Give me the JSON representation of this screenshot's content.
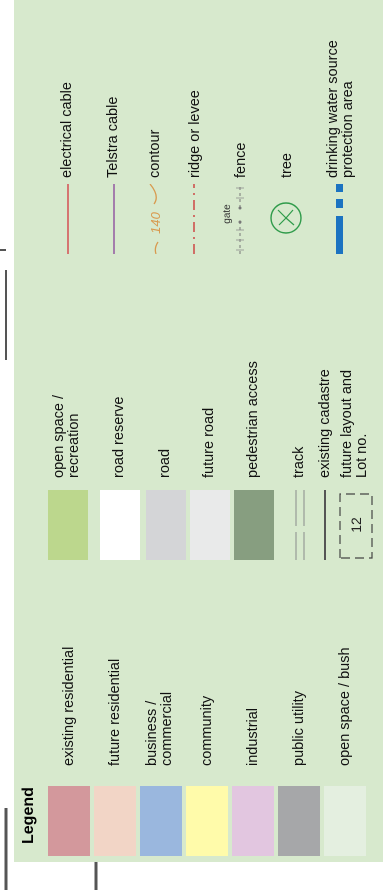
{
  "legend_title": "Legend",
  "land_use": [
    {
      "label": "existing residential",
      "color": "#d3989c"
    },
    {
      "label": "future residential",
      "color": "#f2d5c6"
    },
    {
      "label": "business / commercial",
      "label_lines": [
        "business /",
        "commercial"
      ],
      "color": "#9ab7de"
    },
    {
      "label": "community",
      "color": "#fffbaa"
    },
    {
      "label": "industrial",
      "color": "#e2c6e0"
    },
    {
      "label": "public utility",
      "color": "#a6a7a9"
    },
    {
      "label": "open space / bush",
      "color": "#e4efe0"
    }
  ],
  "transport": [
    {
      "label": "open space / recreation",
      "label_lines": [
        "open space /",
        "recreation"
      ],
      "color": "#bcd78d"
    },
    {
      "label": "road reserve",
      "color": "#ffffff"
    },
    {
      "label": "road",
      "color": "#d4d5d7"
    },
    {
      "label": "future road",
      "color": "#e9eaea"
    },
    {
      "label": "pedestrian access",
      "color": "#879e80"
    },
    {
      "label": "track",
      "icon": "track-lines-icon"
    },
    {
      "label": "existing cadastre",
      "icon": "cadastre-line-icon"
    },
    {
      "label": "future layout and Lot no.",
      "label_lines": [
        "future layout and",
        "Lot no."
      ],
      "lot_number": "12",
      "icon": "future-lot-icon"
    }
  ],
  "features": [
    {
      "label": "electrical cable",
      "color": "#d4444a",
      "icon": "electrical-cable-line"
    },
    {
      "label": "Telstra cable",
      "color": "#8e4f9f",
      "icon": "telstra-cable-line"
    },
    {
      "label": "contour",
      "contour_value": "140",
      "color": "#d89a4f",
      "icon": "contour-icon"
    },
    {
      "label": "ridge or levee",
      "color": "#cc3b3b",
      "icon": "ridge-levee-icon"
    },
    {
      "label": "fence",
      "gate_label": "gate",
      "icon": "fence-icon"
    },
    {
      "label": "tree",
      "color": "#2f9b4a",
      "icon": "tree-icon"
    },
    {
      "label": "drinking water source protection area",
      "label_lines": [
        "drinking water source",
        "protection area"
      ],
      "color": "#1b73c1",
      "icon": "water-protection-icon"
    }
  ]
}
